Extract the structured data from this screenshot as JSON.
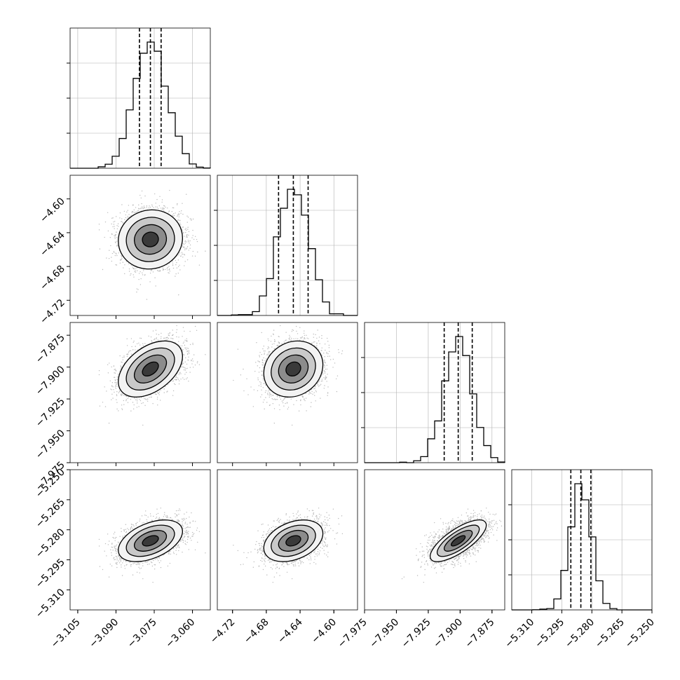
{
  "chart_data": {
    "type": "corner",
    "parameters": [
      {
        "id": "p0",
        "median": -3.0765,
        "q16": -3.0808,
        "q84": -3.0723,
        "sigma": 0.0063,
        "range": [
          -3.108,
          -3.053
        ],
        "ticks": [
          -3.105,
          -3.09,
          -3.075,
          -3.06
        ],
        "tick_labels": [
          "−3.105",
          "−3.090",
          "−3.075",
          "−3.060"
        ]
      },
      {
        "id": "p1",
        "median": -4.648,
        "q16": -4.6655,
        "q84": -4.6305,
        "sigma": 0.0175,
        "range": [
          -4.738,
          -4.572
        ],
        "ticks": [
          -4.72,
          -4.68,
          -4.64,
          -4.6
        ],
        "tick_labels": [
          "−4.72",
          "−4.68",
          "−4.64",
          "−4.60"
        ]
      },
      {
        "id": "p2",
        "median": -7.9015,
        "q16": -7.9125,
        "q84": -7.8905,
        "sigma": 0.011,
        "range": [
          -7.975,
          -7.865
        ],
        "ticks": [
          -7.975,
          -7.95,
          -7.925,
          -7.9,
          -7.875
        ],
        "tick_labels": [
          "−7.975",
          "−7.950",
          "−7.925",
          "−7.900",
          "−7.875"
        ]
      },
      {
        "id": "p3",
        "median": -5.2855,
        "q16": -5.2905,
        "q84": -5.2805,
        "sigma": 0.0052,
        "range": [
          -5.32,
          -5.25
        ],
        "ticks": [
          -5.31,
          -5.295,
          -5.28,
          -5.265,
          -5.25
        ],
        "tick_labels": [
          "−5.310",
          "−5.295",
          "−5.280",
          "−5.265",
          "−5.250"
        ]
      }
    ],
    "correlations": [
      [
        1,
        0.05,
        0.45,
        0.45
      ],
      [
        0.05,
        1,
        0.15,
        0.35
      ],
      [
        0.45,
        0.15,
        1,
        0.75
      ],
      [
        0.45,
        0.35,
        0.75,
        1
      ]
    ],
    "histogram_bins": 20,
    "quantile_lines": [
      0.16,
      0.5,
      0.84
    ],
    "grid": true,
    "colors": {
      "line": "#000000",
      "grid": "#b0b0b0",
      "scatter": "#bbbbbb"
    }
  }
}
